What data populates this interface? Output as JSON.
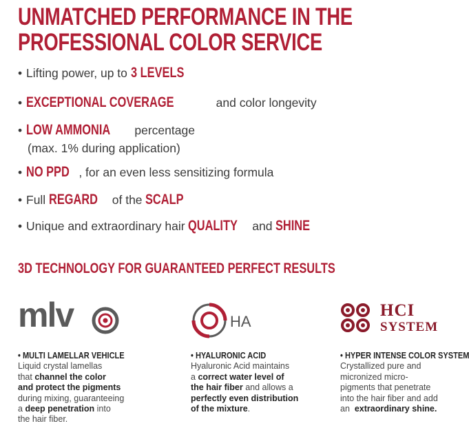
{
  "headline": {
    "line1": "UNMATCHED PERFORMANCE IN THE",
    "line2": "PROFESSIONAL COLOR SERVICE"
  },
  "bullets": {
    "b1": {
      "pre": "Lifting power, up to ",
      "hl": "3 LEVELS"
    },
    "b2": {
      "hl": "EXCEPTIONAL COVERAGE",
      "post": " and color longevity"
    },
    "b3": {
      "hl": "LOW AMMONIA",
      "post": " percentage",
      "sub": "(max. 1% during application)"
    },
    "b4": {
      "hl": "NO PPD",
      "post": ", for an even less sensitizing formula"
    },
    "b5": {
      "pre": "Full ",
      "hl1": "REGARD",
      "mid": " of the ",
      "hl2": "SCALP"
    },
    "b6": {
      "pre": "Unique and extraordinary hair ",
      "hl1": "QUALITY",
      "mid": " and ",
      "hl2": "SHINE"
    }
  },
  "tech_heading": "3D TECHNOLOGY FOR GUARANTEED PERFECT RESULTS",
  "logos": {
    "mlv": "mlv",
    "ha": "HA",
    "hci_line1": "HCI",
    "hci_line2": "SYSTEM"
  },
  "columns": {
    "mlv": {
      "title": "• MULTI LAMELLAR VEHICLE",
      "l1": "Liquid crystal lamellas",
      "l2a": "that ",
      "l2b": "channel the color",
      "l3": "and protect the pigments",
      "l4": "during mixing, guaranteeing",
      "l5a": "a ",
      "l5b": "deep penetration",
      "l5c": " into",
      "l6": "the hair fiber."
    },
    "ha": {
      "title": "• HYALURONIC ACID",
      "l1": "Hyaluronic Acid maintains",
      "l2a": "a ",
      "l2b": "correct water level of",
      "l3a": "the hair fiber",
      "l3b": " and allows a",
      "l4": "perfectly even distribution",
      "l5a": "of the mixture",
      "l5b": "."
    },
    "hci": {
      "title": "• HYPER INTENSE COLOR SYSTEM",
      "l1": "Crystallized pure and",
      "l2": "micronized micro-",
      "l3": "pigments that penetrate",
      "l4": "into the hair fiber and add",
      "l5a": "an  ",
      "l5b": "extraordinary shine."
    }
  },
  "colors": {
    "brand_red": "#b01f35",
    "text_gray": "#3a3a3a",
    "logo_gray": "#5a5a5a"
  },
  "icons": [
    "mlv-target-icon",
    "ha-ring-icon",
    "hci-circles-icon"
  ]
}
